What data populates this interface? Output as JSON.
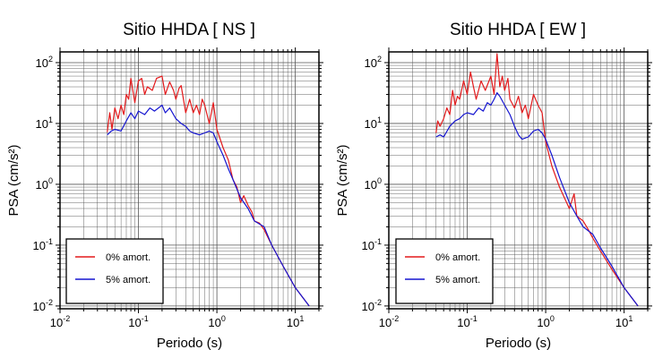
{
  "chart_data": [
    {
      "type": "line",
      "title": "Sitio HHDA [ NS ]",
      "xlabel": "Periodo (s)",
      "ylabel": "PSA (cm/s²)",
      "xscale": "log",
      "yscale": "log",
      "xlim": [
        0.01,
        20
      ],
      "ylim": [
        0.009,
        150
      ],
      "grid": true,
      "legend_position": "bottom-left",
      "x_ticks": [
        "10⁻²",
        "10⁻¹",
        "10⁰",
        "10¹"
      ],
      "y_ticks": [
        "10⁻²",
        "10⁻¹",
        "10⁰",
        "10¹",
        "10²"
      ],
      "series": [
        {
          "name": "0% amort.",
          "color": "#e31a1c",
          "x": [
            0.04,
            0.043,
            0.046,
            0.05,
            0.055,
            0.06,
            0.065,
            0.07,
            0.075,
            0.08,
            0.09,
            0.1,
            0.11,
            0.12,
            0.13,
            0.15,
            0.17,
            0.2,
            0.22,
            0.25,
            0.28,
            0.3,
            0.33,
            0.35,
            0.4,
            0.45,
            0.5,
            0.55,
            0.6,
            0.65,
            0.7,
            0.8,
            0.9,
            1.0,
            1.2,
            1.4,
            1.6,
            1.8,
            2.0,
            2.2,
            2.5,
            2.8,
            3.0,
            3.5,
            4.0,
            5.0,
            7.0,
            10.0,
            15.0
          ],
          "y": [
            7.2,
            15.0,
            8.0,
            18.0,
            12.0,
            20.0,
            14.0,
            30.0,
            25.0,
            55.0,
            22.0,
            50.0,
            55.0,
            30.0,
            40.0,
            35.0,
            55.0,
            60.0,
            30.0,
            48.0,
            35.0,
            25.0,
            38.0,
            42.0,
            15.0,
            25.0,
            15.0,
            20.0,
            14.0,
            25.0,
            20.0,
            10.0,
            22.0,
            8.0,
            4.0,
            2.5,
            1.2,
            0.9,
            0.5,
            0.65,
            0.45,
            0.35,
            0.25,
            0.23,
            0.18,
            0.1,
            0.045,
            0.02,
            0.01
          ]
        },
        {
          "name": "5% amort.",
          "color": "#1515d0",
          "x": [
            0.04,
            0.045,
            0.05,
            0.06,
            0.07,
            0.08,
            0.09,
            0.1,
            0.12,
            0.14,
            0.16,
            0.18,
            0.2,
            0.22,
            0.25,
            0.3,
            0.35,
            0.4,
            0.45,
            0.5,
            0.6,
            0.7,
            0.8,
            0.9,
            1.0,
            1.2,
            1.4,
            1.6,
            2.0,
            2.5,
            3.0,
            4.0,
            5.0,
            7.0,
            10.0,
            15.0
          ],
          "y": [
            6.5,
            7.5,
            8.0,
            7.5,
            11.0,
            15.0,
            12.0,
            16.0,
            14.0,
            18.0,
            16.0,
            18.0,
            20.0,
            15.0,
            18.0,
            12.0,
            10.0,
            9.0,
            7.5,
            7.0,
            6.5,
            7.0,
            7.5,
            7.0,
            5.0,
            3.0,
            1.8,
            1.2,
            0.6,
            0.4,
            0.25,
            0.2,
            0.1,
            0.045,
            0.02,
            0.01
          ]
        }
      ]
    },
    {
      "type": "line",
      "title": "Sitio HHDA [ EW ]",
      "xlabel": "Periodo (s)",
      "ylabel": "PSA (cm/s²)",
      "xscale": "log",
      "yscale": "log",
      "xlim": [
        0.01,
        20
      ],
      "ylim": [
        0.009,
        150
      ],
      "grid": true,
      "legend_position": "bottom-left",
      "x_ticks": [
        "10⁻²",
        "10⁻¹",
        "10⁰",
        "10¹"
      ],
      "y_ticks": [
        "10⁻²",
        "10⁻¹",
        "10⁰",
        "10¹",
        "10²"
      ],
      "series": [
        {
          "name": "0% amort.",
          "color": "#e31a1c",
          "x": [
            0.04,
            0.042,
            0.045,
            0.05,
            0.055,
            0.06,
            0.065,
            0.07,
            0.075,
            0.08,
            0.09,
            0.1,
            0.11,
            0.12,
            0.13,
            0.15,
            0.17,
            0.2,
            0.22,
            0.24,
            0.26,
            0.28,
            0.3,
            0.33,
            0.35,
            0.4,
            0.45,
            0.5,
            0.55,
            0.6,
            0.7,
            0.8,
            0.9,
            1.0,
            1.2,
            1.5,
            2.0,
            2.3,
            2.5,
            3.0,
            3.5,
            4.0,
            5.0,
            7.0,
            10.0,
            15.0
          ],
          "y": [
            7.0,
            11.0,
            9.0,
            12.0,
            18.0,
            14.0,
            35.0,
            20.0,
            28.0,
            25.0,
            50.0,
            30.0,
            70.0,
            40.0,
            25.0,
            50.0,
            35.0,
            60.0,
            30.0,
            140.0,
            40.0,
            60.0,
            35.0,
            55.0,
            25.0,
            18.0,
            28.0,
            15.0,
            20.0,
            12.0,
            30.0,
            20.0,
            15.0,
            5.0,
            2.0,
            0.9,
            0.4,
            0.7,
            0.3,
            0.25,
            0.18,
            0.13,
            0.08,
            0.04,
            0.02,
            0.01
          ]
        },
        {
          "name": "5% amort.",
          "color": "#1515d0",
          "x": [
            0.04,
            0.045,
            0.05,
            0.06,
            0.07,
            0.08,
            0.09,
            0.1,
            0.12,
            0.14,
            0.16,
            0.18,
            0.2,
            0.22,
            0.24,
            0.26,
            0.3,
            0.35,
            0.4,
            0.45,
            0.5,
            0.6,
            0.7,
            0.8,
            0.9,
            1.0,
            1.2,
            1.5,
            2.0,
            2.5,
            3.0,
            4.0,
            5.0,
            7.0,
            10.0,
            15.0
          ],
          "y": [
            6.0,
            6.5,
            6.0,
            9.0,
            11.0,
            12.0,
            14.0,
            15.0,
            14.0,
            18.0,
            16.0,
            22.0,
            20.0,
            25.0,
            32.0,
            28.0,
            20.0,
            14.0,
            9.0,
            6.5,
            5.5,
            6.0,
            7.5,
            8.0,
            7.0,
            5.5,
            3.0,
            1.3,
            0.5,
            0.3,
            0.2,
            0.15,
            0.09,
            0.045,
            0.02,
            0.01
          ]
        }
      ]
    }
  ]
}
